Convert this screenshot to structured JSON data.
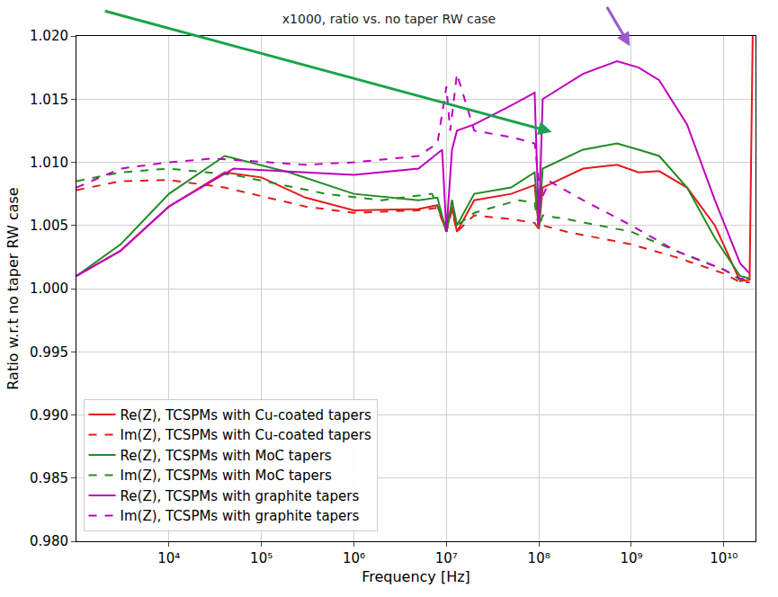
{
  "chart_data": {
    "type": "line",
    "title": "x1000, ratio vs. no taper RW case",
    "x_label": "Frequency [Hz]",
    "y_label": "Ratio w.r.t no taper RW case",
    "log": "x",
    "grid": true,
    "legend": "lower left",
    "xlim": [
      1000,
      22000000000
    ],
    "ylim": [
      0.98,
      1.02
    ],
    "xticks": [
      {
        "value": 10000,
        "label": "10⁴"
      },
      {
        "value": 100000,
        "label": "10⁵"
      },
      {
        "value": 1000000,
        "label": "10⁶"
      },
      {
        "value": 10000000,
        "label": "10⁷"
      },
      {
        "value": 100000000,
        "label": "10⁸"
      },
      {
        "value": 1000000000,
        "label": "10⁹"
      },
      {
        "value": 10000000000,
        "label": "10¹⁰"
      }
    ],
    "yticks": [
      {
        "value": 0.98,
        "label": "0.980"
      },
      {
        "value": 0.985,
        "label": "0.985"
      },
      {
        "value": 0.99,
        "label": "0.990"
      },
      {
        "value": 0.995,
        "label": "0.995"
      },
      {
        "value": 1.0,
        "label": "1.000"
      },
      {
        "value": 1.005,
        "label": "1.005"
      },
      {
        "value": 1.01,
        "label": "1.010"
      },
      {
        "value": 1.015,
        "label": "1.015"
      },
      {
        "value": 1.02,
        "label": "1.020"
      }
    ],
    "series": [
      {
        "name": "Re(Z), TCSPMs with Cu-coated tapers",
        "color": "#e41a1c",
        "line_style": "solid",
        "x": [
          1000,
          3000,
          10000,
          40000,
          100000,
          300000,
          1000000,
          5000000,
          8000000,
          10000000,
          11500000,
          13000000,
          20000000,
          50000000,
          90000000,
          100000000,
          110000000,
          300000000,
          700000000,
          1200000000,
          2000000000,
          4000000000,
          8000000000,
          15000000000,
          19000000000,
          20500000000
        ],
        "values": [
          1.001,
          1.003,
          1.0065,
          1.0092,
          1.0088,
          1.0072,
          1.0062,
          1.0063,
          1.0066,
          1.0045,
          1.0065,
          1.0045,
          1.007,
          1.0075,
          1.0082,
          1.0047,
          1.008,
          1.0095,
          1.0098,
          1.0092,
          1.0093,
          1.008,
          1.005,
          1.0006,
          1.0007,
          1.02
        ]
      },
      {
        "name": "Im(Z), TCSPMs with Cu-coated tapers",
        "color": "#e41a1c",
        "line_style": "dash",
        "x": [
          1000,
          3000,
          10000,
          40000,
          300000,
          1000000,
          5000000,
          8000000,
          10000000,
          11500000,
          13000000,
          20000000,
          50000000,
          90000000,
          100000000,
          110000000,
          200000000,
          1000000000,
          3000000000,
          10000000000,
          15000000000,
          19000000000
        ],
        "values": [
          1.0078,
          1.0085,
          1.0086,
          1.008,
          1.0065,
          1.006,
          1.0062,
          1.0064,
          1.0045,
          1.0062,
          1.0045,
          1.0058,
          1.0055,
          1.0052,
          1.0047,
          1.005,
          1.0045,
          1.0035,
          1.0025,
          1.0012,
          1.0005,
          1.0005
        ]
      },
      {
        "name": "Re(Z), TCSPMs with MoC tapers",
        "color": "#228b22",
        "line_style": "solid",
        "x": [
          1000,
          3000,
          10000,
          40000,
          200000,
          1000000,
          5000000,
          8000000,
          10000000,
          11500000,
          13000000,
          20000000,
          50000000,
          90000000,
          100000000,
          110000000,
          300000000,
          700000000,
          1200000000,
          2000000000,
          4000000000,
          8000000000,
          15000000000,
          19000000000
        ],
        "values": [
          1.001,
          1.0035,
          1.0075,
          1.0105,
          1.0092,
          1.0075,
          1.007,
          1.0072,
          1.0045,
          1.007,
          1.005,
          1.0075,
          1.008,
          1.0092,
          1.0048,
          1.0095,
          1.011,
          1.0115,
          1.011,
          1.0105,
          1.008,
          1.004,
          1.001,
          1.0008
        ]
      },
      {
        "name": "Im(Z), TCSPMs with MoC tapers",
        "color": "#228b22",
        "line_style": "dash",
        "x": [
          1000,
          3000,
          10000,
          50000,
          500000,
          2000000,
          7000000,
          10000000,
          11500000,
          13000000,
          20000000,
          60000000,
          90000000,
          100000000,
          110000000,
          200000000,
          1000000000,
          3000000000,
          10000000000,
          15000000000,
          19000000000
        ],
        "values": [
          1.0085,
          1.0092,
          1.0095,
          1.009,
          1.0075,
          1.007,
          1.0075,
          1.0048,
          1.007,
          1.005,
          1.006,
          1.007,
          1.0068,
          1.0048,
          1.0058,
          1.0055,
          1.0045,
          1.003,
          1.0015,
          1.0007,
          1.0006
        ]
      },
      {
        "name": "Re(Z), TCSPMs with graphite tapers",
        "color": "#c000c0",
        "line_style": "solid",
        "x": [
          1000,
          3000,
          10000,
          50000,
          300000,
          1000000,
          5000000,
          9000000,
          10000000,
          11500000,
          13000000,
          20000000,
          50000000,
          90000000,
          100000000,
          110000000,
          300000000,
          700000000,
          1200000000,
          2000000000,
          4000000000,
          8000000000,
          15000000000,
          19000000000
        ],
        "values": [
          1.001,
          1.003,
          1.0065,
          1.0095,
          1.0092,
          1.009,
          1.0095,
          1.011,
          1.0045,
          1.011,
          1.0125,
          1.013,
          1.0145,
          1.0155,
          1.005,
          1.015,
          1.017,
          1.018,
          1.0175,
          1.0165,
          1.013,
          1.007,
          1.002,
          1.0012
        ]
      },
      {
        "name": "Im(Z), TCSPMs with graphite tapers",
        "color": "#c000c0",
        "line_style": "dash",
        "x": [
          1000,
          3000,
          10000,
          30000,
          300000,
          1000000,
          5000000,
          8000000,
          10000000,
          11000000,
          13000000,
          20000000,
          50000000,
          90000000,
          105000000,
          130000000,
          300000000,
          1000000000,
          3000000000,
          10000000000,
          15000000000,
          19000000000
        ],
        "values": [
          1.008,
          1.0095,
          1.01,
          1.0103,
          1.0098,
          1.01,
          1.0105,
          1.0115,
          1.016,
          1.0125,
          1.017,
          1.0125,
          1.012,
          1.0115,
          1.007,
          1.0085,
          1.007,
          1.005,
          1.003,
          1.0015,
          1.0008,
          1.0007
        ]
      }
    ]
  }
}
